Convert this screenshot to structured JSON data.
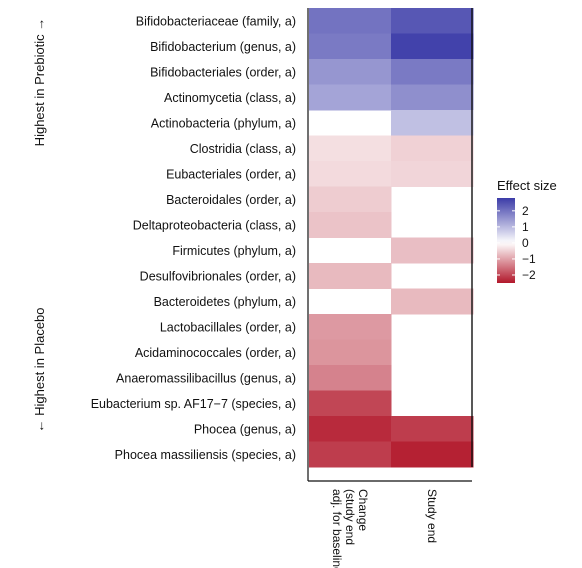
{
  "chart_data": {
    "type": "heatmap",
    "rows": [
      "Bifidobacteriaceae (family, a)",
      "Bifidobacterium (genus, a)",
      "Bifidobacteriales (order, a)",
      "Actinomycetia (class, a)",
      "Actinobacteria (phylum, a)",
      "Clostridia (class, a)",
      "Eubacteriales (order, a)",
      "Bacteroidales (order, a)",
      "Deltaproteobacteria (class, a)",
      "Firmicutes (phylum, a)",
      "Desulfovibrionales (order, a)",
      "Bacteroidetes (phylum, a)",
      "Lactobacillales (order, a)",
      "Acidaminococcales (order, a)",
      "Anaeromassilibacillus (genus, a)",
      "Eubacterium sp. AF17−7 (species, a)",
      "Phocea (genus, a)",
      "Phocea massiliensis (species, a)"
    ],
    "columns": [
      [
        "Change",
        "(study end",
        "adj. for baseline)"
      ],
      [
        "Study end"
      ]
    ],
    "values": [
      [
        2.0,
        2.4
      ],
      [
        1.9,
        2.7
      ],
      [
        1.5,
        1.9
      ],
      [
        1.3,
        1.6
      ],
      [
        null,
        0.9
      ],
      [
        -0.35,
        -0.5
      ],
      [
        -0.4,
        -0.45
      ],
      [
        -0.55,
        null
      ],
      [
        -0.65,
        null
      ],
      [
        null,
        -0.7
      ],
      [
        -0.75,
        null
      ],
      [
        null,
        -0.75
      ],
      [
        -1.1,
        null
      ],
      [
        -1.15,
        null
      ],
      [
        -1.35,
        null
      ],
      [
        -2.0,
        null
      ],
      [
        -2.3,
        -2.1
      ],
      [
        -2.1,
        -2.4
      ]
    ],
    "color_scale": {
      "low": "#b2182b",
      "mid": "#ffffff",
      "high": "#3b3ba8",
      "range": [
        -2.5,
        2.8
      ]
    },
    "legend": {
      "title": "Effect size",
      "ticks": [
        2,
        1,
        0,
        -1,
        -2
      ],
      "tick_labels": [
        "2",
        "1",
        "0",
        "−1",
        "−2"
      ],
      "position": "right"
    },
    "side_labels": {
      "top": "Highest in Prebiotic →",
      "bottom": "← Highest in Placebo"
    }
  }
}
